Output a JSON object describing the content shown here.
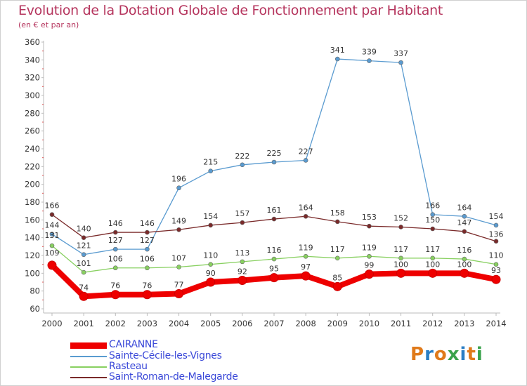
{
  "title": "Evolution de la Dotation Globale de Fonctionnement par Habitant",
  "subtitle": "(en € et par an)",
  "logo": {
    "text": "Proxiti",
    "letters": [
      "P",
      "r",
      "o",
      "x",
      "i",
      "t",
      "i"
    ],
    "colors": [
      "#e07a1a",
      "#2a7ec4",
      "#e07a1a",
      "#3aa24b",
      "#2a7ec4",
      "#e07a1a",
      "#3aa24b"
    ]
  },
  "chart_data": {
    "type": "line",
    "title": "Evolution de la Dotation Globale de Fonctionnement par Habitant",
    "ylabel": "(en € et par an)",
    "xlabel": "",
    "ylim": [
      60,
      360
    ],
    "ytick_step": 20,
    "grid": false,
    "x": [
      "2000",
      "2001",
      "2002",
      "2003",
      "2004",
      "2005",
      "2006",
      "2007",
      "2008",
      "2009",
      "2010",
      "2011",
      "2012",
      "2013",
      "2014"
    ],
    "series": [
      {
        "name": "CAIRANNE",
        "color": "#ee0000",
        "weight": "heavy",
        "values": [
          109,
          74,
          76,
          76,
          77,
          90,
          92,
          95,
          97,
          85,
          99,
          100,
          100,
          100,
          93
        ]
      },
      {
        "name": "Sainte-Cécile-les-Vignes",
        "color": "#5a9bd0",
        "weight": "normal",
        "values": [
          144,
          121,
          127,
          127,
          196,
          215,
          222,
          225,
          227,
          341,
          339,
          337,
          166,
          164,
          154
        ]
      },
      {
        "name": "Rasteau",
        "color": "#88d060",
        "weight": "normal",
        "values": [
          131,
          101,
          106,
          106,
          107,
          110,
          113,
          116,
          119,
          117,
          119,
          117,
          117,
          116,
          110
        ]
      },
      {
        "name": "Saint-Roman-de-Malegarde",
        "color": "#7a2a2a",
        "weight": "normal",
        "values": [
          166,
          140,
          146,
          146,
          149,
          154,
          157,
          161,
          164,
          158,
          153,
          152,
          150,
          147,
          136
        ]
      }
    ],
    "legend_position": "bottom-left"
  }
}
